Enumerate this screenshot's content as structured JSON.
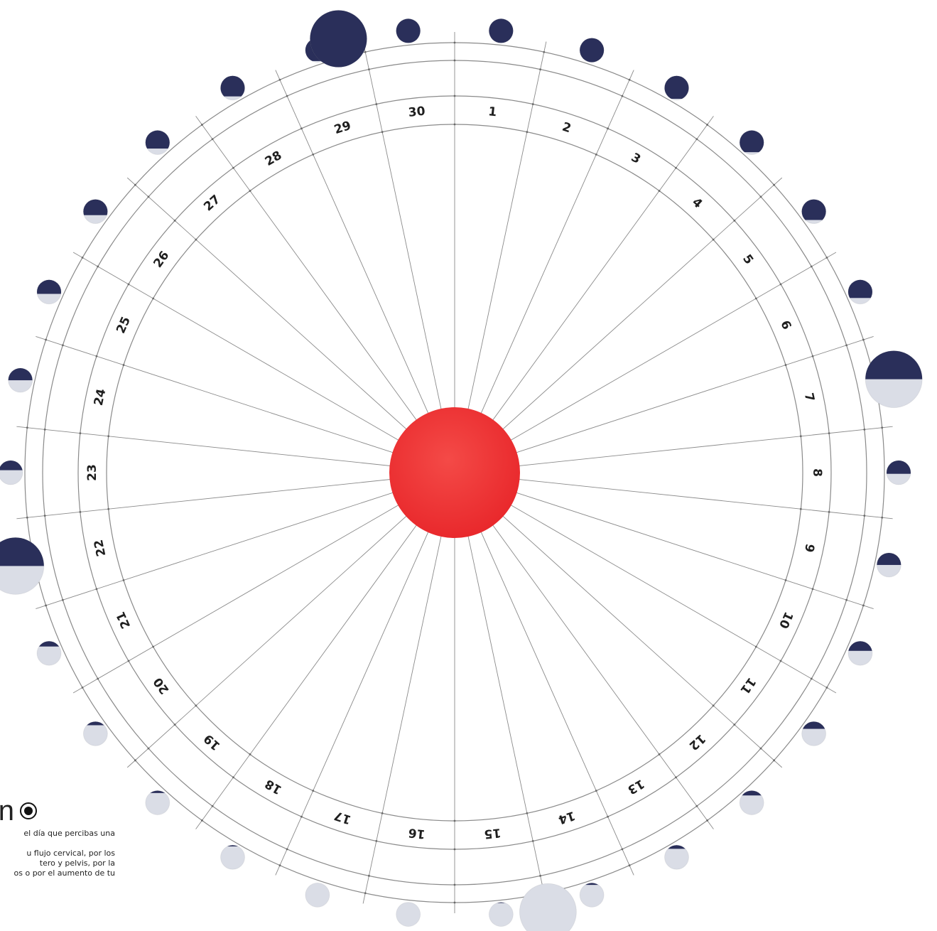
{
  "diagram": {
    "type": "lunar-menstrual-cycle-wheel",
    "days": [
      "1",
      "2",
      "3",
      "4",
      "5",
      "6",
      "7",
      "8",
      "9",
      "10",
      "11",
      "12",
      "13",
      "14",
      "15",
      "16",
      "17",
      "18",
      "19",
      "20",
      "21",
      "22",
      "23",
      "24",
      "25",
      "26",
      "27",
      "28",
      "29",
      "30"
    ],
    "center_color": "#f0302e",
    "moon_dark_color": "#2a2f5a",
    "moon_light_color": "#dadde6",
    "line_color": "#8a8a8a",
    "moon_phases": [
      {
        "day": 1,
        "illumination": 0.0
      },
      {
        "day": 2,
        "illumination": 0.0
      },
      {
        "day": 3,
        "illumination": 0.05
      },
      {
        "day": 4,
        "illumination": 0.1
      },
      {
        "day": 5,
        "illumination": 0.15
      },
      {
        "day": 6,
        "illumination": 0.25
      },
      {
        "day": 7,
        "illumination": 0.35
      },
      {
        "day": 8,
        "illumination": 0.45
      },
      {
        "day": 9,
        "illumination": 0.5
      },
      {
        "day": 10,
        "illumination": 0.6
      },
      {
        "day": 11,
        "illumination": 0.7
      },
      {
        "day": 12,
        "illumination": 0.8
      },
      {
        "day": 13,
        "illumination": 0.85
      },
      {
        "day": 14,
        "illumination": 0.92
      },
      {
        "day": 15,
        "illumination": 0.97
      },
      {
        "day": 16,
        "illumination": 1.0
      },
      {
        "day": 17,
        "illumination": 1.0
      },
      {
        "day": 18,
        "illumination": 0.95
      },
      {
        "day": 19,
        "illumination": 0.9
      },
      {
        "day": 20,
        "illumination": 0.85
      },
      {
        "day": 21,
        "illumination": 0.78
      },
      {
        "day": 22,
        "illumination": 0.7
      },
      {
        "day": 23,
        "illumination": 0.6
      },
      {
        "day": 24,
        "illumination": 0.5
      },
      {
        "day": 25,
        "illumination": 0.42
      },
      {
        "day": 26,
        "illumination": 0.35
      },
      {
        "day": 27,
        "illumination": 0.25
      },
      {
        "day": 28,
        "illumination": 0.15
      },
      {
        "day": 29,
        "illumination": 0.05
      },
      {
        "day": 30,
        "illumination": 0.0
      }
    ],
    "big_moons": [
      {
        "angle_deg": -15,
        "illumination": 0.0
      },
      {
        "angle_deg": 78,
        "illumination": 0.5
      },
      {
        "angle_deg": 168,
        "illumination": 1.0
      },
      {
        "angle_deg": 258,
        "illumination": 0.5
      }
    ]
  },
  "legend": {
    "title_fragment": "n",
    "icon": "radio-selected-icon",
    "lines": [
      "el día que percibas una",
      "",
      "u flujo cervical, por los",
      "tero y pelvis, por la",
      "os o por el aumento de tu"
    ]
  }
}
